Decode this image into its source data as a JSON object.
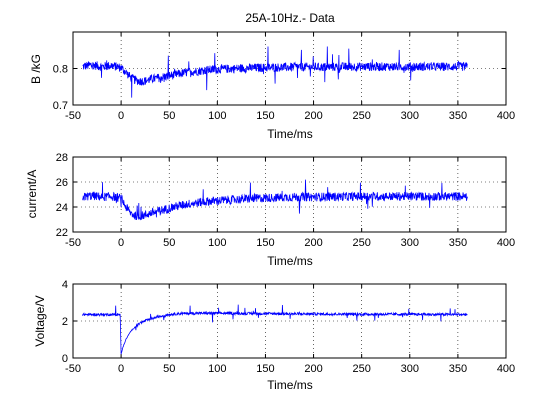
{
  "chart_data": [
    {
      "type": "line",
      "title": "25A-10Hz.- Data",
      "xlabel": "Time/ms",
      "ylabel": "B /kG",
      "xlim": [
        -50,
        400
      ],
      "ylim": [
        0.7,
        0.9
      ],
      "xticks": [
        "-50",
        "0",
        "50",
        "100",
        "150",
        "200",
        "250",
        "300",
        "350",
        "400"
      ],
      "yticks": [
        "0.7",
        "0.8"
      ],
      "grid": true,
      "color": "#0000ff",
      "series": [
        {
          "x": [
            -40,
            -30,
            -20,
            -10,
            0,
            5,
            10,
            15,
            20,
            25,
            30,
            40,
            50,
            60,
            70,
            80,
            90,
            100,
            120,
            140,
            160,
            180,
            200,
            250,
            300,
            360
          ],
          "y": [
            0.805,
            0.81,
            0.805,
            0.808,
            0.802,
            0.79,
            0.775,
            0.768,
            0.765,
            0.766,
            0.77,
            0.775,
            0.78,
            0.785,
            0.79,
            0.793,
            0.796,
            0.798,
            0.8,
            0.802,
            0.803,
            0.804,
            0.804,
            0.805,
            0.805,
            0.805
          ]
        }
      ]
    },
    {
      "type": "line",
      "title": "",
      "xlabel": "Time/ms",
      "ylabel": "current/A",
      "xlim": [
        -50,
        400
      ],
      "ylim": [
        22,
        28
      ],
      "xticks": [
        "-50",
        "0",
        "50",
        "100",
        "150",
        "200",
        "250",
        "300",
        "350",
        "400"
      ],
      "yticks": [
        "22",
        "24",
        "26",
        "28"
      ],
      "grid": true,
      "color": "#0000ff",
      "series": [
        {
          "x": [
            -40,
            -30,
            -20,
            -10,
            0,
            5,
            10,
            15,
            20,
            25,
            30,
            40,
            50,
            60,
            70,
            80,
            90,
            100,
            120,
            140,
            160,
            180,
            200,
            250,
            300,
            360
          ],
          "y": [
            24.8,
            24.9,
            24.8,
            24.85,
            24.7,
            24.0,
            23.5,
            23.3,
            23.3,
            23.35,
            23.5,
            23.7,
            23.9,
            24.1,
            24.25,
            24.35,
            24.45,
            24.5,
            24.6,
            24.7,
            24.75,
            24.8,
            24.8,
            24.85,
            24.85,
            24.85
          ]
        }
      ]
    },
    {
      "type": "line",
      "title": "",
      "xlabel": "Time/ms",
      "ylabel": "Voltage/V",
      "xlim": [
        -50,
        400
      ],
      "ylim": [
        0,
        4
      ],
      "xticks": [
        "-50",
        "0",
        "50",
        "100",
        "150",
        "200",
        "250",
        "300",
        "350",
        "400"
      ],
      "yticks": [
        "0",
        "2",
        "4"
      ],
      "grid": true,
      "color": "#0000ff",
      "series": [
        {
          "x": [
            -40,
            -30,
            -20,
            -10,
            -1,
            0,
            2,
            5,
            10,
            15,
            20,
            30,
            40,
            50,
            60,
            80,
            100,
            150,
            200,
            250,
            300,
            360
          ],
          "y": [
            2.35,
            2.35,
            2.35,
            2.35,
            2.35,
            0.2,
            0.6,
            1.0,
            1.45,
            1.7,
            1.9,
            2.1,
            2.25,
            2.35,
            2.4,
            2.42,
            2.42,
            2.4,
            2.38,
            2.37,
            2.36,
            2.35
          ]
        }
      ]
    }
  ]
}
